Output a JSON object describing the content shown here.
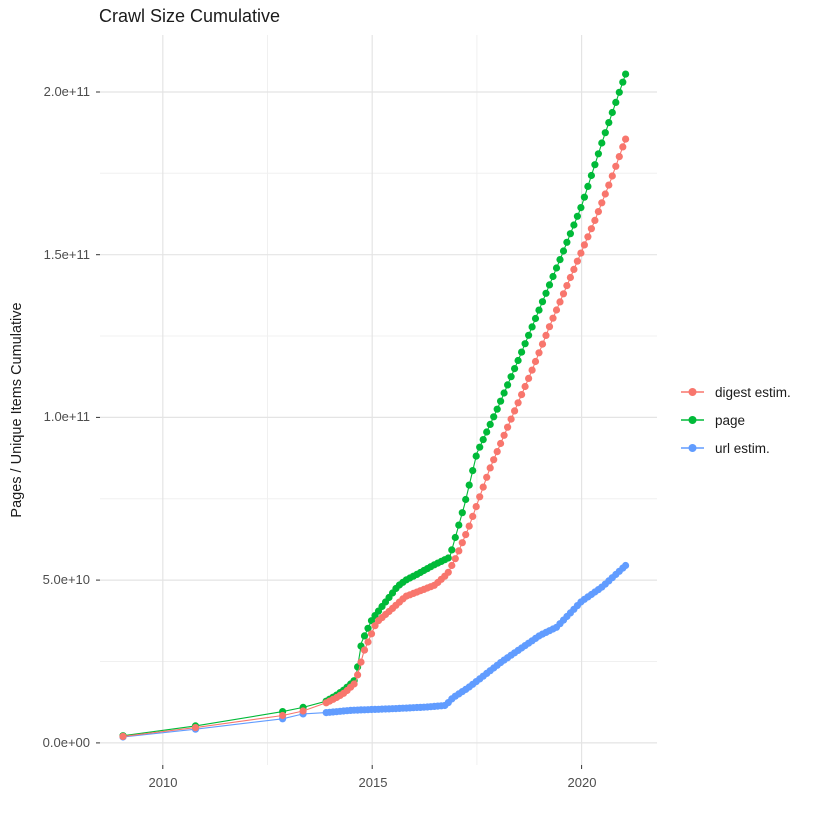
{
  "title": "Crawl Size Cumulative",
  "y_axis": {
    "label": "Pages / Unique Items Cumulative",
    "ticks": [
      "2.0e+11",
      "1.5e+11",
      "1.0e+11",
      "5.0e+10",
      "0.0e+00"
    ],
    "tick_values": [
      200000000000.0,
      150000000000.0,
      100000000000.0,
      50000000000.0,
      0
    ],
    "minor_values": [
      175000000000.0,
      125000000000.0,
      75000000000.0,
      25000000000.0
    ]
  },
  "x_axis": {
    "ticks": [
      "2010",
      "2015",
      "2020"
    ],
    "tick_values": [
      2010,
      2015,
      2020
    ],
    "minor_values": [
      2012.5,
      2017.5
    ]
  },
  "legend": {
    "items": [
      {
        "label": "digest estim.",
        "color": "#F8766D"
      },
      {
        "label": "page",
        "color": "#00BA38"
      },
      {
        "label": "url estim.",
        "color": "#619CFF"
      }
    ]
  },
  "colors": {
    "grid_major": "#E4E4E4",
    "grid_minor": "#F0F0F0",
    "tick_mark": "#333333",
    "axis_text": "#4d4d4d"
  },
  "chart_data": {
    "type": "scatter",
    "xlim": [
      2008.5,
      2021.8
    ],
    "ylim": [
      -6800000000.0,
      217500000000.0
    ],
    "grid": true,
    "legend_position": "right",
    "dots_monthly_from": 2013.9,
    "dot_interval_years": 0.08333,
    "series": [
      {
        "name": "digest estim.",
        "color": "#F8766D",
        "points": [
          [
            2009.05,
            2000000000.0
          ],
          [
            2010.78,
            4700000000.0
          ],
          [
            2012.86,
            8400000000.0
          ],
          [
            2013.35,
            9800000000.0
          ],
          [
            2013.9,
            12300000000.0
          ],
          [
            2014.13,
            13800000000.0
          ],
          [
            2014.35,
            15500000000.0
          ],
          [
            2014.6,
            18500000000.0
          ],
          [
            2014.8,
            28000000000.0
          ],
          [
            2015.1,
            37000000000.0
          ],
          [
            2015.5,
            41500000000.0
          ],
          [
            2015.8,
            45000000000.0
          ],
          [
            2016.1,
            46500000000.0
          ],
          [
            2016.5,
            48500000000.0
          ],
          [
            2016.8,
            52000000000.0
          ],
          [
            2017.0,
            57000000000.0
          ],
          [
            2017.3,
            66000000000.0
          ],
          [
            2017.8,
            84000000000.0
          ],
          [
            2018.3,
            99000000000.0
          ],
          [
            2018.8,
            114000000000.0
          ],
          [
            2019.3,
            130000000000.0
          ],
          [
            2019.8,
            145000000000.0
          ],
          [
            2020.3,
            160000000000.0
          ],
          [
            2020.7,
            173000000000.0
          ],
          [
            2021.05,
            185500000000.0
          ]
        ]
      },
      {
        "name": "page",
        "color": "#00BA38",
        "points": [
          [
            2009.05,
            2200000000.0
          ],
          [
            2010.78,
            5200000000.0
          ],
          [
            2012.86,
            9600000000.0
          ],
          [
            2013.35,
            10900000000.0
          ],
          [
            2013.9,
            12800000000.0
          ],
          [
            2014.13,
            14500000000.0
          ],
          [
            2014.35,
            16500000000.0
          ],
          [
            2014.6,
            19500000000.0
          ],
          [
            2014.75,
            31000000000.0
          ],
          [
            2015.0,
            38000000000.0
          ],
          [
            2015.3,
            43000000000.0
          ],
          [
            2015.6,
            48000000000.0
          ],
          [
            2015.8,
            50000000000.0
          ],
          [
            2016.1,
            52000000000.0
          ],
          [
            2016.45,
            54500000000.0
          ],
          [
            2016.85,
            57000000000.0
          ],
          [
            2017.2,
            73000000000.0
          ],
          [
            2017.5,
            89000000000.0
          ],
          [
            2018.0,
            103000000000.0
          ],
          [
            2018.5,
            118000000000.0
          ],
          [
            2019.0,
            133500000000.0
          ],
          [
            2019.5,
            149000000000.0
          ],
          [
            2020.0,
            165000000000.0
          ],
          [
            2020.5,
            185000000000.0
          ],
          [
            2021.05,
            205500000000.0
          ]
        ]
      },
      {
        "name": "url estim.",
        "color": "#619CFF",
        "points": [
          [
            2009.05,
            1800000000.0
          ],
          [
            2010.78,
            4200000000.0
          ],
          [
            2012.86,
            7400000000.0
          ],
          [
            2013.35,
            8900000000.0
          ],
          [
            2013.9,
            9300000000.0
          ],
          [
            2014.5,
            10000000000.0
          ],
          [
            2015.5,
            10500000000.0
          ],
          [
            2016.3,
            11000000000.0
          ],
          [
            2016.75,
            11500000000.0
          ],
          [
            2016.9,
            13500000000.0
          ],
          [
            2017.0,
            14500000000.0
          ],
          [
            2017.3,
            17000000000.0
          ],
          [
            2018.1,
            25000000000.0
          ],
          [
            2019.0,
            33000000000.0
          ],
          [
            2019.4,
            35500000000.0
          ],
          [
            2020.0,
            43500000000.0
          ],
          [
            2020.5,
            48000000000.0
          ],
          [
            2021.05,
            54500000000.0
          ]
        ]
      }
    ]
  }
}
